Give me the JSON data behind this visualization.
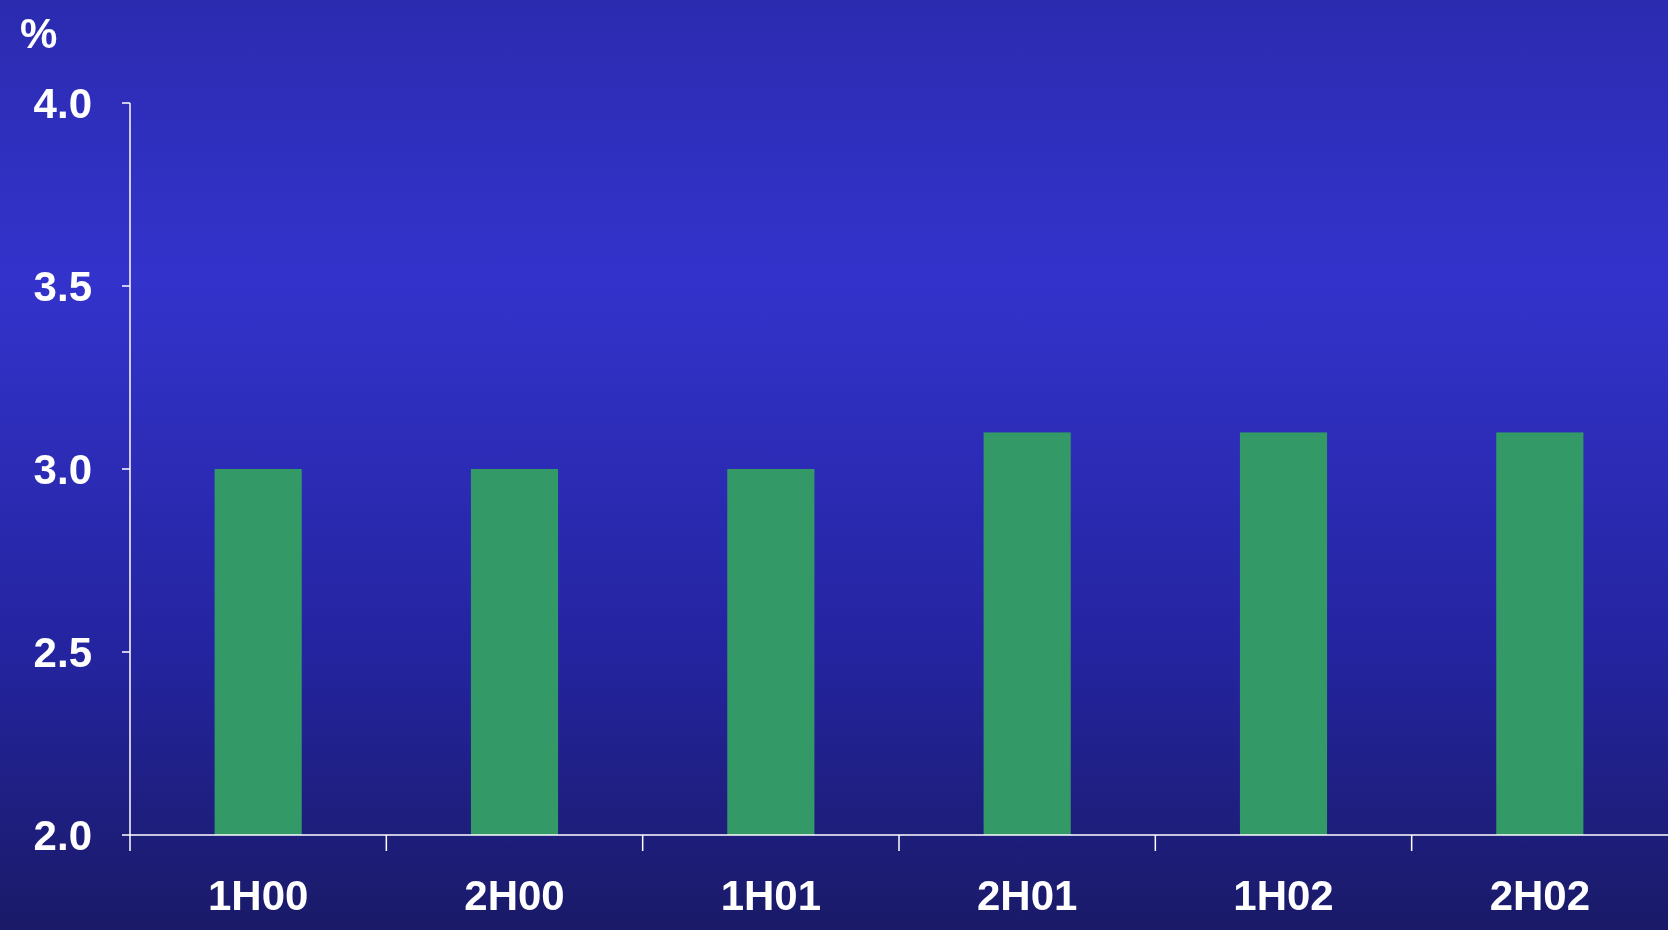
{
  "chart_data": {
    "type": "bar",
    "ylabel": "%",
    "categories": [
      "1H00",
      "2H00",
      "1H01",
      "2H01",
      "1H02",
      "2H02"
    ],
    "values": [
      3.0,
      3.0,
      3.0,
      3.1,
      3.1,
      3.1
    ],
    "color": "#339966",
    "ylim": [
      2.0,
      4.0
    ],
    "yticks": [
      {
        "value": 2.0,
        "label": "2.0"
      },
      {
        "value": 2.5,
        "label": "2.5"
      },
      {
        "value": 3.0,
        "label": "3.0"
      },
      {
        "value": 3.5,
        "label": "3.5"
      },
      {
        "value": 4.0,
        "label": "4.0"
      }
    ]
  }
}
